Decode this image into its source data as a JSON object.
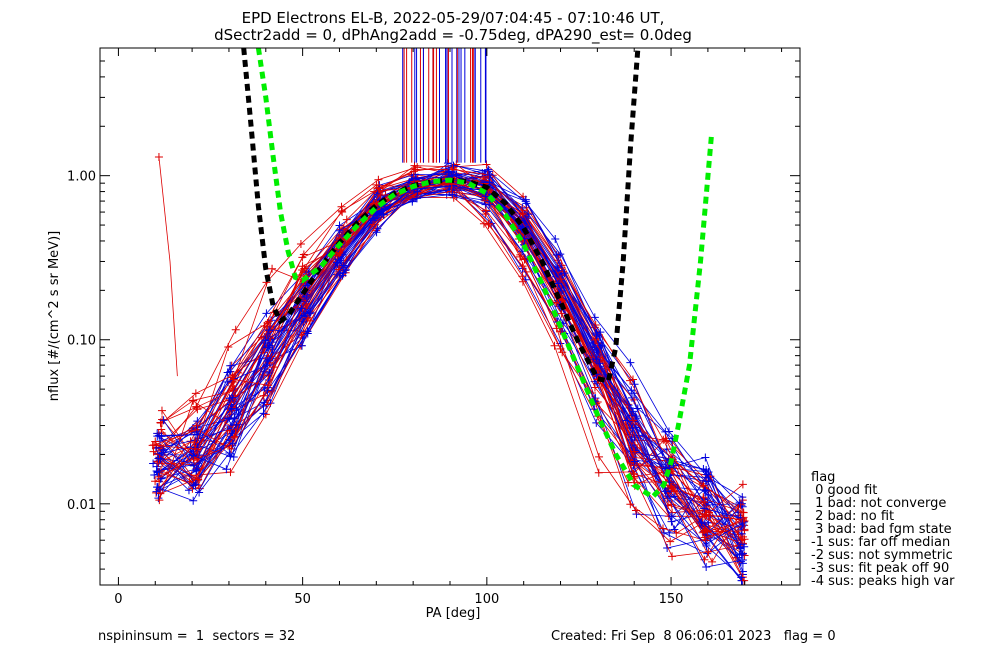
{
  "title_line1": "EPD Electrons EL-B, 2022-05-29/07:04:45 - 07:10:46 UT,",
  "title_line2": "dSectr2add = 0, dPhAng2add = -0.75deg, dPA290_est=   0.0deg",
  "footer": {
    "left": "nspininsum =  1  sectors = 32",
    "right": "Created: Fri Sep  8 06:06:01 2023   flag = 0"
  },
  "legend": {
    "title": "flag",
    "entries": [
      " 0 good fit",
      " 1 bad: not converge",
      " 2 bad: no fit",
      " 3 bad: bad fgm state",
      "-1 sus: far off median",
      "-2 sus: not symmetric",
      "-3 sus: fit peak off 90",
      "-4 sus: peaks high var"
    ]
  },
  "colors": {
    "red_series": "#dd0000",
    "blue_series": "#0000dd",
    "fit_black": "#000000",
    "fit_green": "#00ee00"
  },
  "chart_data": {
    "type": "line",
    "xlabel": "PA [deg]",
    "ylabel": "nflux [#/(cm^2 s sr MeV)]",
    "xlim": [
      -5,
      185
    ],
    "ylim": [
      0.0032,
      6.0
    ],
    "y_scale": "log",
    "x_ticks": [
      0,
      50,
      100,
      150
    ],
    "x_tick_labels": [
      "0",
      "50",
      "100",
      "150"
    ],
    "y_ticks": [
      0.01,
      0.1,
      1.0
    ],
    "y_tick_labels": [
      "0.01",
      "0.10",
      "1.00"
    ],
    "markers": "plus",
    "series_count_shown_approx": 64,
    "typical_shape": {
      "pa": [
        11,
        20,
        30,
        40,
        50,
        60,
        70,
        80,
        90,
        100,
        110,
        120,
        130,
        140,
        150,
        160,
        169
      ],
      "nflux": [
        0.018,
        0.02,
        0.03,
        0.07,
        0.16,
        0.35,
        0.65,
        0.88,
        0.95,
        0.88,
        0.5,
        0.2,
        0.07,
        0.025,
        0.012,
        0.009,
        0.006
      ]
    },
    "fit_curves": [
      {
        "color": "black",
        "pa": [
          34,
          36,
          38,
          40,
          42,
          44,
          46,
          50,
          55,
          60,
          65,
          70,
          75,
          80,
          85,
          90,
          95,
          100,
          105,
          110,
          115,
          120,
          125,
          130,
          133,
          135,
          137,
          139,
          141
        ],
        "nflux": [
          6.0,
          2.0,
          0.65,
          0.27,
          0.16,
          0.13,
          0.14,
          0.19,
          0.28,
          0.39,
          0.52,
          0.66,
          0.78,
          0.87,
          0.92,
          0.94,
          0.92,
          0.85,
          0.68,
          0.48,
          0.3,
          0.17,
          0.095,
          0.058,
          0.056,
          0.09,
          0.3,
          1.5,
          6.0
        ]
      },
      {
        "color": "green",
        "pa": [
          38,
          40,
          42,
          44,
          46,
          48,
          50,
          55,
          60,
          65,
          70,
          75,
          80,
          85,
          90,
          95,
          100,
          105,
          110,
          115,
          120,
          125,
          130,
          135,
          140,
          145,
          148,
          150,
          152,
          155,
          158,
          161
        ],
        "nflux": [
          6.0,
          3.0,
          1.3,
          0.6,
          0.35,
          0.24,
          0.23,
          0.28,
          0.38,
          0.5,
          0.64,
          0.77,
          0.86,
          0.92,
          0.94,
          0.9,
          0.78,
          0.58,
          0.38,
          0.22,
          0.12,
          0.065,
          0.035,
          0.02,
          0.013,
          0.011,
          0.013,
          0.018,
          0.03,
          0.07,
          0.3,
          1.8
        ]
      }
    ],
    "vertical_lines_pa_range": [
      77,
      100
    ],
    "vertical_lines_bottom_nflux": 1.2
  }
}
